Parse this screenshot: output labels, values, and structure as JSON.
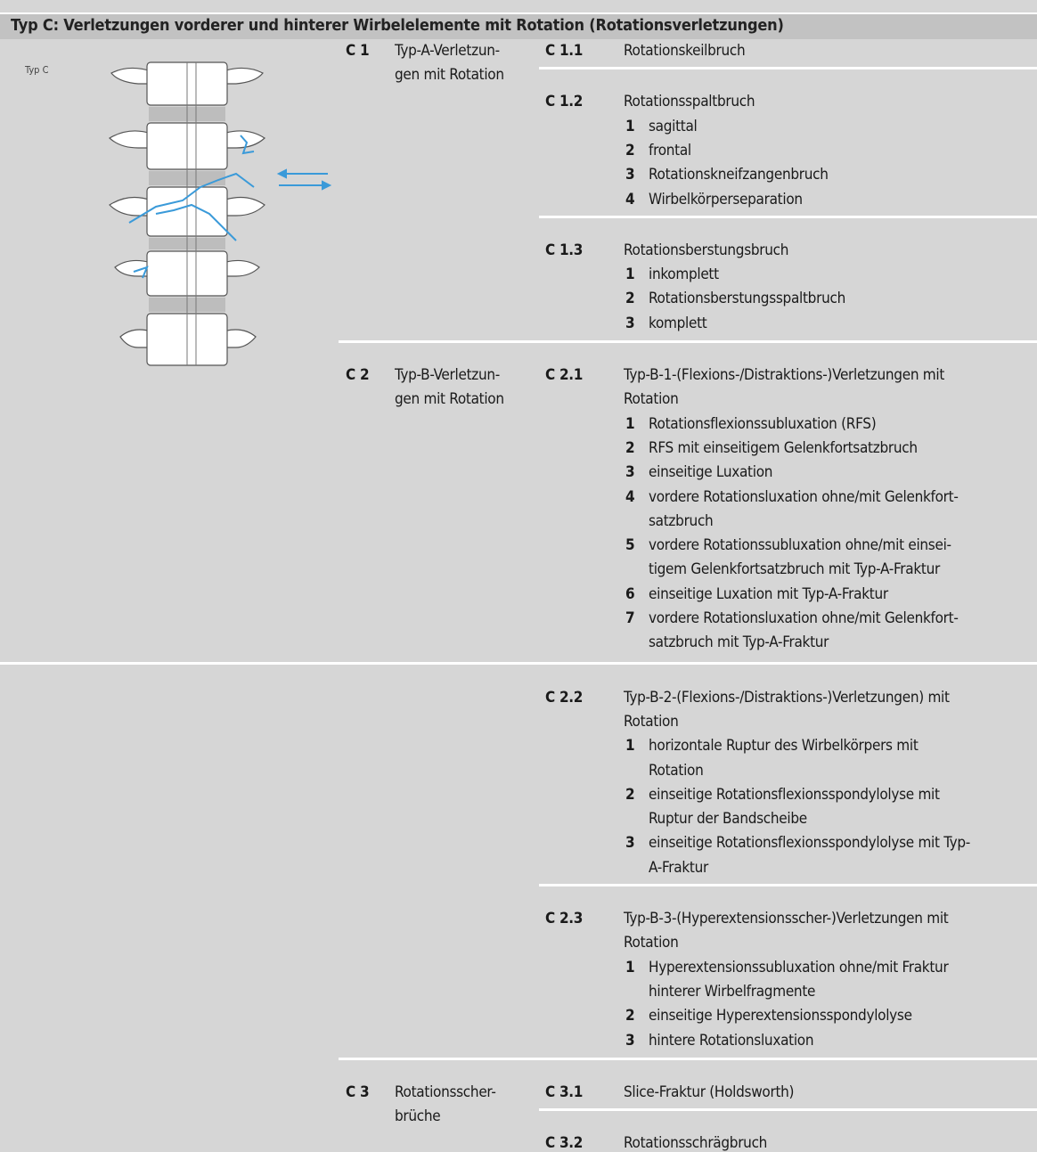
{
  "header": {
    "title": "Typ C: Verletzungen vorderer und hinterer Wirbelelemente mit Rotation (Rotationsverletzungen)"
  },
  "figure": {
    "label": "Typ C"
  },
  "groups": [
    {
      "code": "C 1",
      "name": [
        "Typ-A-Verletzun-",
        "gen mit Rotation"
      ],
      "subgroups": [
        {
          "code": "C 1.1",
          "title": [
            "Rotationskeilbruch"
          ],
          "items": []
        },
        {
          "code": "C 1.2",
          "title": [
            "Rotationsspaltbruch"
          ],
          "items": [
            {
              "number": "1",
              "text": [
                "sagittal"
              ]
            },
            {
              "number": "2",
              "text": [
                "frontal"
              ]
            },
            {
              "number": "3",
              "text": [
                "Rotationskneifzangenbruch"
              ]
            },
            {
              "number": "4",
              "text": [
                "Wirbelkörperseparation"
              ]
            }
          ]
        },
        {
          "code": "C 1.3",
          "title": [
            "Rotationsberstungsbruch"
          ],
          "items": [
            {
              "number": "1",
              "text": [
                "inkomplett"
              ]
            },
            {
              "number": "2",
              "text": [
                "Rotationsberstungsspaltbruch"
              ]
            },
            {
              "number": "3",
              "text": [
                "komplett"
              ]
            }
          ]
        }
      ]
    },
    {
      "code": "C 2",
      "name": [
        "Typ-B-Verletzun-",
        "gen mit Rotation"
      ],
      "subgroups": [
        {
          "code": "C 2.1",
          "title": [
            "Typ-B-1-(Flexions-/Distraktions-)Verletzungen mit",
            "Rotation"
          ],
          "items": [
            {
              "number": "1",
              "text": [
                "Rotationsflexionssubluxation (RFS)"
              ]
            },
            {
              "number": "2",
              "text": [
                "RFS mit einseitigem Gelenkfortsatzbruch"
              ]
            },
            {
              "number": "3",
              "text": [
                "einseitige Luxation"
              ]
            },
            {
              "number": "4",
              "text": [
                "vordere Rotationsluxation ohne/mit Gelenkfort-",
                "satzbruch"
              ]
            },
            {
              "number": "5",
              "text": [
                "vordere Rotationssubluxation ohne/mit einsei-",
                "tigem Gelenkfortsatzbruch mit Typ-A-Fraktur"
              ]
            },
            {
              "number": "6",
              "text": [
                "einseitige Luxation mit Typ-A-Fraktur"
              ]
            },
            {
              "number": "7",
              "text": [
                "vordere Rotationsluxation ohne/mit Gelenkfort-",
                "satzbruch mit Typ-A-Fraktur"
              ]
            }
          ]
        },
        {
          "code": "C 2.2",
          "title": [
            "Typ-B-2-(Flexions-/Distraktions-)Verletzungen) mit",
            "Rotation"
          ],
          "items": [
            {
              "number": "1",
              "text": [
                "horizontale Ruptur des Wirbelkörpers mit",
                "Rotation"
              ]
            },
            {
              "number": "2",
              "text": [
                "einseitige Rotationsflexionsspondylolyse mit",
                "Ruptur der Bandscheibe"
              ]
            },
            {
              "number": "3",
              "text": [
                "einseitige Rotationsflexionsspondylolyse mit Typ-",
                "A-Fraktur"
              ]
            }
          ]
        },
        {
          "code": "C 2.3",
          "title": [
            "Typ-B-3-(Hyperextensionsscher-)Verletzungen mit",
            "Rotation"
          ],
          "items": [
            {
              "number": "1",
              "text": [
                "Hyperextensionssubluxation ohne/mit Fraktur",
                "hinterer Wirbelfragmente"
              ]
            },
            {
              "number": "2",
              "text": [
                "einseitige Hyperextensionsspondylolyse"
              ]
            },
            {
              "number": "3",
              "text": [
                "hintere Rotationsluxation"
              ]
            }
          ]
        }
      ]
    },
    {
      "code": "C 3",
      "name": [
        "Rotationsscher-",
        "brüche"
      ],
      "subgroups": [
        {
          "code": "C 3.1",
          "title": [
            "Slice-Fraktur (Holdsworth)"
          ],
          "items": []
        },
        {
          "code": "C 3.2",
          "title": [
            "Rotationsschrägbruch"
          ],
          "items": []
        }
      ]
    }
  ]
}
